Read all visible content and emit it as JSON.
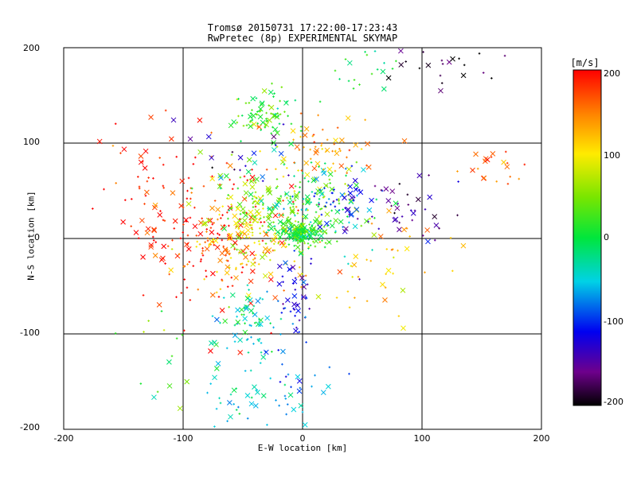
{
  "chart_data": {
    "type": "scatter",
    "title": "Tromsø 20150731 17:22:00-17:23:43",
    "subtitle": "RwPretec (8p) EXPERIMENTAL SKYMAP",
    "xlabel": "E-W location [km]",
    "ylabel": "N-S location [km]",
    "xlim": [
      -200,
      200
    ],
    "ylim": [
      -200,
      200
    ],
    "xticks": [
      "-200",
      "-100",
      "0",
      "100",
      "200"
    ],
    "yticks": [
      "-200",
      "-100",
      "0",
      "100",
      "200"
    ],
    "grid_lines": [
      -100,
      0,
      100
    ],
    "colorbar": {
      "label": "[m/s]",
      "range": [
        -200,
        200
      ],
      "ticks": [
        "200",
        "100",
        "0",
        "-100",
        "-200"
      ],
      "colormap": "rainbow (black-purple-blue-cyan-green-yellow-red)"
    },
    "markers": [
      "x (large)",
      "+ (small)"
    ],
    "clusters": [
      {
        "center": [
          -75,
          10
        ],
        "spread": [
          30,
          40
        ],
        "velocity": 185,
        "n": 170
      },
      {
        "center": [
          -130,
          40
        ],
        "spread": [
          20,
          40
        ],
        "velocity": 190,
        "n": 45
      },
      {
        "center": [
          -60,
          -10
        ],
        "spread": [
          25,
          25
        ],
        "velocity": 130,
        "n": 70
      },
      {
        "center": [
          -35,
          10
        ],
        "spread": [
          20,
          25
        ],
        "velocity": 80,
        "n": 80
      },
      {
        "center": [
          0,
          5
        ],
        "spread": [
          8,
          6
        ],
        "velocity": 10,
        "n": 160
      },
      {
        "center": [
          -15,
          30
        ],
        "spread": [
          30,
          25
        ],
        "velocity": 40,
        "n": 160
      },
      {
        "center": [
          5,
          45
        ],
        "spread": [
          25,
          25
        ],
        "velocity": -20,
        "n": 90
      },
      {
        "center": [
          30,
          40
        ],
        "spread": [
          15,
          15
        ],
        "velocity": -110,
        "n": 45
      },
      {
        "center": [
          -30,
          130
        ],
        "spread": [
          15,
          12
        ],
        "velocity": 20,
        "n": 75
      },
      {
        "center": [
          15,
          95
        ],
        "spread": [
          25,
          15
        ],
        "velocity": 140,
        "n": 60
      },
      {
        "center": [
          -10,
          -55
        ],
        "spread": [
          8,
          25
        ],
        "velocity": -120,
        "n": 45
      },
      {
        "center": [
          -45,
          -90
        ],
        "spread": [
          15,
          20
        ],
        "velocity": -35,
        "n": 70
      },
      {
        "center": [
          -40,
          -175
        ],
        "spread": [
          25,
          20
        ],
        "velocity": -50,
        "n": 45
      },
      {
        "center": [
          85,
          30
        ],
        "spread": [
          25,
          20
        ],
        "velocity": -150,
        "n": 40
      },
      {
        "center": [
          60,
          -30
        ],
        "spread": [
          30,
          30
        ],
        "velocity": 120,
        "n": 45
      },
      {
        "center": [
          160,
          75
        ],
        "spread": [
          20,
          10
        ],
        "velocity": 160,
        "n": 20
      },
      {
        "center": [
          110,
          185
        ],
        "spread": [
          40,
          12
        ],
        "velocity": -190,
        "n": 22
      },
      {
        "center": [
          45,
          175
        ],
        "spread": [
          20,
          15
        ],
        "velocity": 10,
        "n": 20
      },
      {
        "center": [
          -120,
          -120
        ],
        "spread": [
          20,
          25
        ],
        "velocity": 30,
        "n": 15
      },
      {
        "center": [
          -45,
          90
        ],
        "spread": [
          25,
          15
        ],
        "velocity": -150,
        "n": 18
      },
      {
        "center": [
          0,
          -130
        ],
        "spread": [
          25,
          25
        ],
        "velocity": -90,
        "n": 25
      }
    ]
  }
}
